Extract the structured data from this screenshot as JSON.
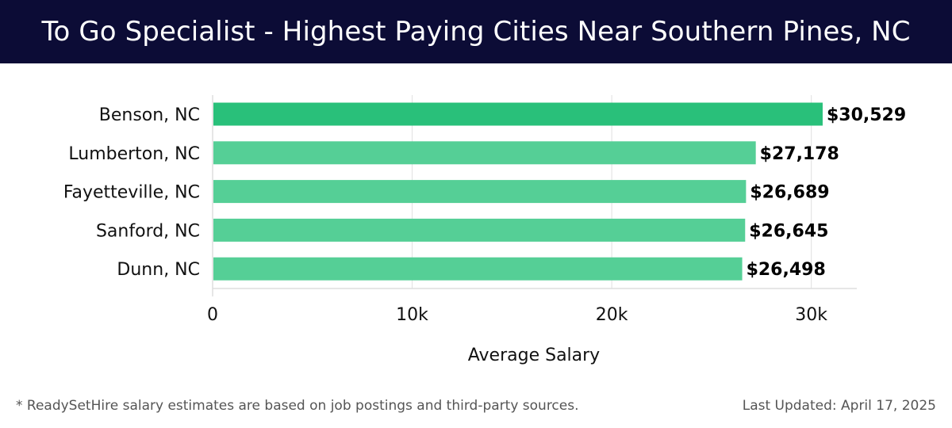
{
  "header": {
    "title": "To Go Specialist - Highest Paying Cities Near Southern Pines, NC"
  },
  "chart_data": {
    "type": "bar",
    "orientation": "horizontal",
    "categories": [
      "Benson, NC",
      "Lumberton, NC",
      "Fayetteville, NC",
      "Sanford, NC",
      "Dunn, NC"
    ],
    "values": [
      30529,
      27178,
      26689,
      26645,
      26498
    ],
    "value_labels": [
      "$30,529",
      "$27,178",
      "$26,689",
      "$26,645",
      "$26,498"
    ],
    "xlabel": "Average Salary",
    "ylabel": "",
    "xlim": [
      0,
      32200
    ],
    "xticks": [
      0,
      10000,
      20000,
      30000
    ],
    "xtick_labels": [
      "0",
      "10k",
      "20k",
      "30k"
    ],
    "grid": true,
    "colors": {
      "top_bar": "#29c07a",
      "bar": "#55cf96",
      "grid": "#e0e0e0",
      "text": "#111111"
    }
  },
  "footer": {
    "note": "* ReadySetHire salary estimates are based on job postings and third-party sources.",
    "updated": "Last Updated: April 17, 2025"
  }
}
